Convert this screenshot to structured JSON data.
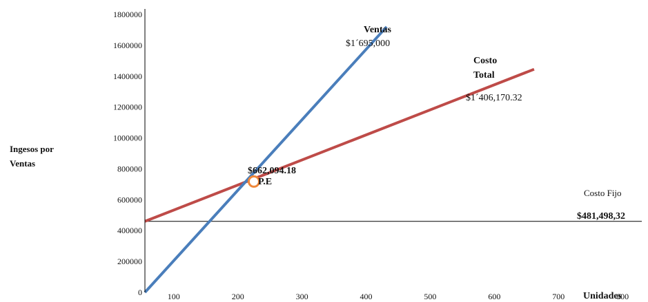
{
  "chart_data": {
    "type": "line",
    "xlabel": "Unidades",
    "ylabel_line1": "Ingesos por",
    "ylabel_line2": "Ventas",
    "x_ticks": [
      100,
      200,
      300,
      400,
      500,
      600,
      700,
      800
    ],
    "y_ticks": [
      0,
      200000,
      400000,
      600000,
      800000,
      1000000,
      1200000,
      1400000,
      1600000,
      1800000
    ],
    "xlim": [
      55,
      830
    ],
    "ylim": [
      0,
      1800000
    ],
    "grid": false,
    "series": [
      {
        "name": "Ventas",
        "color": "#4a7ebb",
        "x": [
          55,
          432
        ],
        "y": [
          0,
          1720000
        ]
      },
      {
        "name": "Costo Total",
        "color": "#be4b48",
        "x": [
          55,
          662
        ],
        "y": [
          460000,
          1445000
        ]
      },
      {
        "name": "Costo Fijo",
        "color": "#000000",
        "x": [
          55,
          830
        ],
        "y": [
          460000,
          460000
        ]
      }
    ],
    "break_even": {
      "x": 225,
      "y": 718000,
      "label": "P.E",
      "value_label": "$662,094.18",
      "color": "#f0883a"
    },
    "annotations": {
      "ventas_name": "Ventas",
      "ventas_value": "$1´695,000",
      "costo_total_line1": "Costo",
      "costo_total_line2": "Total",
      "costo_total_value": "$1´406,170.32",
      "costo_fijo_name": "Costo Fijo",
      "costo_fijo_value": "$481,498,32"
    }
  }
}
